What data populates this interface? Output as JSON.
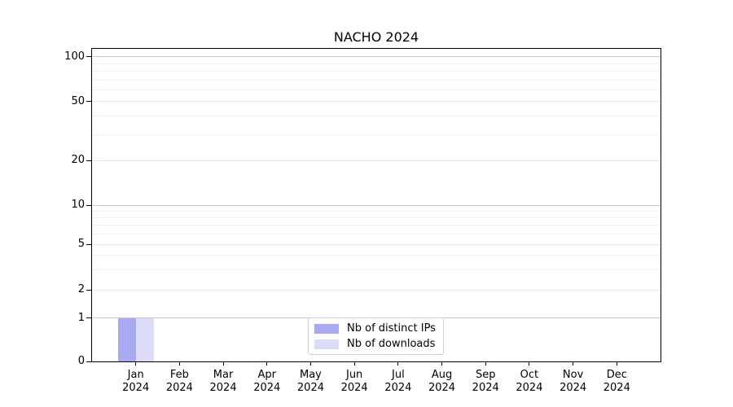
{
  "chart_data": {
    "type": "bar",
    "title": "NACHO 2024",
    "categories_months": [
      "Jan",
      "Feb",
      "Mar",
      "Apr",
      "May",
      "Jun",
      "Jul",
      "Aug",
      "Sep",
      "Oct",
      "Nov",
      "Dec"
    ],
    "categories_year": "2024",
    "series": [
      {
        "name": "Nb of distinct IPs",
        "color": "#aaaaf2",
        "values": [
          1,
          0,
          0,
          0,
          0,
          0,
          0,
          0,
          0,
          0,
          0,
          0
        ]
      },
      {
        "name": "Nb of downloads",
        "color": "#dcdcf8",
        "values": [
          1,
          0,
          0,
          0,
          0,
          0,
          0,
          0,
          0,
          0,
          0,
          0
        ]
      }
    ],
    "y_axis": {
      "scale": "symlog",
      "major_ticks": [
        0,
        1,
        2,
        5,
        10,
        20,
        50,
        100
      ],
      "minor_gridlines": [
        3,
        4,
        6,
        7,
        8,
        9,
        30,
        40,
        60,
        70,
        80,
        90
      ],
      "emphasized_gridlines": [
        1,
        10,
        100
      ],
      "ylim": [
        0,
        110
      ],
      "anchor_fractions": [
        [
          0,
          0
        ],
        [
          1,
          0.1388
        ],
        [
          2,
          0.2292
        ],
        [
          5,
          0.375
        ],
        [
          10,
          0.4992
        ],
        [
          20,
          0.6432
        ],
        [
          50,
          0.8315
        ],
        [
          100,
          0.974
        ]
      ]
    },
    "grid": true,
    "legend_position": "lower center",
    "colors": {
      "grid_major": "#e4e4e4",
      "grid_minor": "#f0f0f0",
      "grid_emphasis": "#c6c6c6",
      "axis": "#000000",
      "background": "#ffffff"
    }
  }
}
